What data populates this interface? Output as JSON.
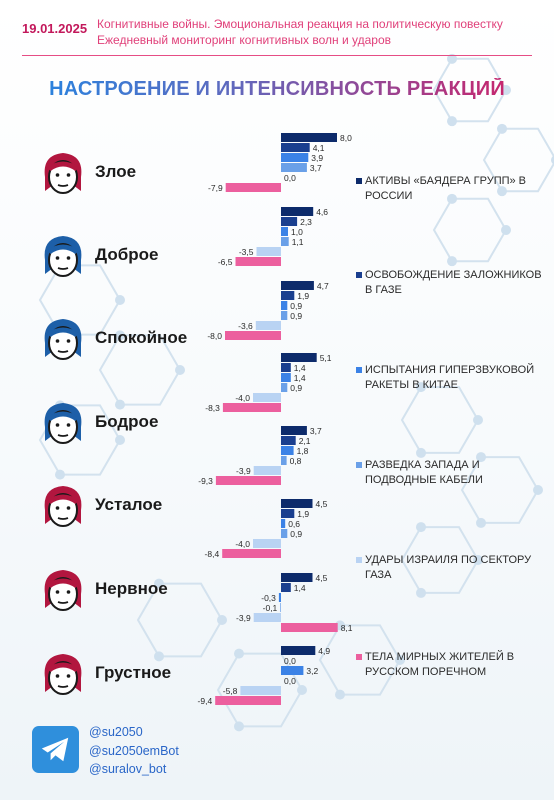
{
  "header": {
    "date": "19.01.2025",
    "line1": "Когнитивные войны. Эмоциональная реакция на политическую повестку",
    "line2": "Ежедневный мониторинг когнитивных волн и ударов"
  },
  "title": "НАСТРОЕНИЕ И ИНТЕНСИВНОСТЬ РЕАКЦИЙ",
  "moods": [
    {
      "label": "Злое",
      "icon": "angry-face-icon",
      "hair": "#b2163f"
    },
    {
      "label": "Доброе",
      "icon": "kind-face-icon",
      "hair": "#1d5fa8"
    },
    {
      "label": "Спокойное",
      "icon": "calm-face-icon",
      "hair": "#1d5fa8"
    },
    {
      "label": "Бодрое",
      "icon": "cheerful-face-icon",
      "hair": "#1d5fa8"
    },
    {
      "label": "Усталое",
      "icon": "tired-face-icon",
      "hair": "#b2163f"
    },
    {
      "label": "Нервное",
      "icon": "nervous-face-icon",
      "hair": "#b2163f"
    },
    {
      "label": "Грустное",
      "icon": "sad-face-icon",
      "hair": "#b2163f"
    }
  ],
  "legend": [
    "АКТИВЫ «БАЯДЕРА ГРУПП» В РОССИИ",
    "ОСВОБОЖДЕНИЕ ЗАЛОЖНИКОВ В ГАЗЕ",
    "ИСПЫТАНИЯ ГИПЕРЗВУКОВОЙ РАКЕТЫ В КИТАЕ",
    "РАЗВЕДКА ЗАПАДА И ПОДВОДНЫЕ КАБЕЛИ",
    "УДАРЫ ИЗРАИЛЯ ПО СЕКТОРУ ГАЗА",
    "ТЕЛА МИРНЫХ ЖИТЕЛЕЙ В РУССКОМ ПОРЕЧНОМ"
  ],
  "footer": {
    "telegram_icon": "telegram-icon",
    "handles": [
      "@su2050",
      "@su2050emBot",
      "@suralov_bot"
    ]
  },
  "colors": {
    "series": [
      "#0d2b6b",
      "#1a3f8f",
      "#3b82e6",
      "#6aa0e8",
      "#b9d3f3",
      "#ec5f9e"
    ],
    "accent": "#d81b60"
  },
  "chart_data": {
    "type": "bar",
    "orientation": "horizontal",
    "categories": [
      "Злое",
      "Доброе",
      "Спокойное",
      "Бодрое",
      "Усталое",
      "Нервное",
      "Грустное"
    ],
    "series": [
      {
        "name": "АКТИВЫ «БАЯДЕРА ГРУПП» В РОССИИ",
        "values": [
          8.0,
          4.6,
          4.7,
          5.1,
          3.7,
          4.5,
          4.5
        ]
      },
      {
        "name": "ОСВОБОЖДЕНИЕ ЗАЛОЖНИКОВ В ГАЗЕ",
        "values": [
          4.1,
          2.3,
          1.9,
          1.4,
          2.1,
          1.9,
          1.4
        ]
      },
      {
        "name": "ИСПЫТАНИЯ ГИПЕРЗВУКОВОЙ РАКЕТЫ В КИТАЕ",
        "values": [
          3.9,
          1.0,
          0.9,
          1.4,
          1.8,
          0.6,
          -0.3
        ]
      },
      {
        "name": "РАЗВЕДКА ЗАПАДА И ПОДВОДНЫЕ КАБЕЛИ",
        "values": [
          3.7,
          1.1,
          0.9,
          0.9,
          0.8,
          0.9,
          -0.1
        ]
      },
      {
        "name": "УДАРЫ ИЗРАИЛЯ ПО СЕКТОРУ ГАЗА",
        "values": [
          0.0,
          -3.5,
          -3.6,
          -4.0,
          -3.9,
          -4.0,
          -3.9
        ]
      },
      {
        "name": "ТЕЛА МИРНЫХ ЖИТЕЛЕЙ В РУССКОМ ПОРЕЧНОМ",
        "values": [
          -7.9,
          -6.5,
          -8.0,
          -8.3,
          -9.3,
          -8.4,
          8.1
        ]
      }
    ],
    "value_labels": [
      [
        "8,0",
        "4,1",
        "3,9",
        "3,7",
        "0,0",
        "-7,9"
      ],
      [
        "4,6",
        "2,3",
        "1,0",
        "1,1",
        "-3,5",
        "-6,5"
      ],
      [
        "4,7",
        "1,9",
        "0,9",
        "0,9",
        "-3,6",
        "-8,0"
      ],
      [
        "5,1",
        "1,4",
        "1,4",
        "0,9",
        "-4,0",
        "-8,3"
      ],
      [
        "3,7",
        "2,1",
        "1,8",
        "0,8",
        "-3,9",
        "-9,3"
      ],
      [
        "4,5",
        "1,9",
        "0,6",
        "0,9",
        "-4,0",
        "-8,4"
      ],
      [
        "4,5",
        "1,4",
        "-0,3",
        "-0,1",
        "-3,9",
        "8,1"
      ],
      [
        "4,9",
        "0,0",
        "3,2",
        "0,0",
        "-5,8",
        "-9,4"
      ]
    ],
    "last_group_values": [
      4.9,
      0.0,
      3.2,
      0.0,
      -5.8,
      -9.4
    ],
    "grid": false
  }
}
